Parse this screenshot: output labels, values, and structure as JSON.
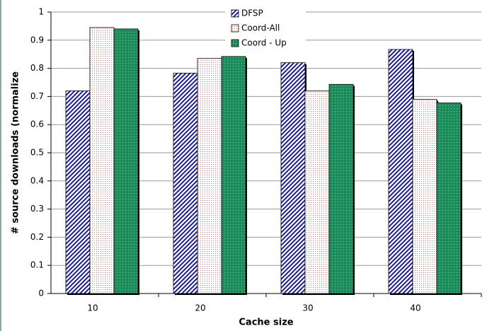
{
  "chart_data": {
    "type": "bar",
    "x_label": "Cache size",
    "y_label": "# source downloads (normalize",
    "categories": [
      "10",
      "20",
      "30",
      "40"
    ],
    "series": [
      {
        "name": "DFSP",
        "color": "#1a1aa0",
        "values": [
          0.72,
          0.783,
          0.82,
          0.867
        ]
      },
      {
        "name": "Coord-All",
        "color": "#d07070",
        "values": [
          0.945,
          0.835,
          0.72,
          0.69
        ]
      },
      {
        "name": "Coord - Up",
        "color": "#1e8c5a",
        "values": [
          0.94,
          0.842,
          0.743,
          0.677
        ]
      }
    ],
    "ylim": [
      0,
      1
    ],
    "yticks": [
      0,
      0.1,
      0.2,
      0.3,
      0.4,
      0.5,
      0.6,
      0.7,
      0.8,
      0.9,
      1
    ],
    "grid": true
  }
}
